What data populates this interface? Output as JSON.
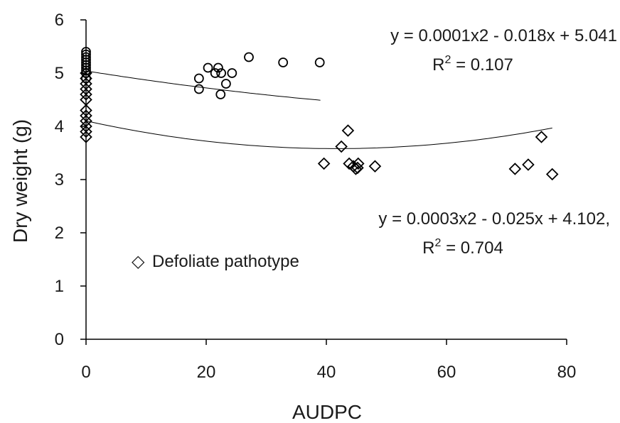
{
  "chart_data": {
    "type": "scatter",
    "title": "",
    "xlabel": "AUDPC",
    "ylabel": "Dry weight  (g)",
    "xlim": [
      0,
      80
    ],
    "ylim": [
      0,
      6
    ],
    "xticks": [
      "0",
      "20",
      "40",
      "60",
      "80"
    ],
    "yticks": [
      "0",
      "1",
      "2",
      "3",
      "4",
      "5",
      "6"
    ],
    "grid": false,
    "legend": {
      "position": "lower-left",
      "marker": "◇",
      "label": "Defoliate pathotype"
    },
    "series": [
      {
        "marker": "circle",
        "points": [
          [
            0,
            4.9
          ],
          [
            0,
            5.0
          ],
          [
            0,
            5.05
          ],
          [
            0,
            5.1
          ],
          [
            0,
            5.15
          ],
          [
            0,
            5.2
          ],
          [
            0,
            5.25
          ],
          [
            0,
            5.3
          ],
          [
            0,
            5.35
          ],
          [
            0,
            5.4
          ],
          [
            18.8,
            4.9
          ],
          [
            18.8,
            4.7
          ],
          [
            20.3,
            5.1
          ],
          [
            21.5,
            5.0
          ],
          [
            22.0,
            5.1
          ],
          [
            22.5,
            5.0
          ],
          [
            22.4,
            4.6
          ],
          [
            23.3,
            4.8
          ],
          [
            24.3,
            5.0
          ],
          [
            27.1,
            5.3
          ],
          [
            32.8,
            5.2
          ],
          [
            38.9,
            5.2
          ]
        ],
        "fit": {
          "type": "poly2",
          "a": 0.0001,
          "b": -0.018,
          "c": 5.041,
          "x_range": [
            0,
            39
          ]
        }
      },
      {
        "marker": "diamond",
        "name": "Defoliate pathotype",
        "points": [
          [
            0,
            3.8
          ],
          [
            0,
            3.9
          ],
          [
            0,
            4.0
          ],
          [
            0,
            4.1
          ],
          [
            0,
            4.2
          ],
          [
            0,
            4.3
          ],
          [
            0,
            4.5
          ],
          [
            0,
            4.6
          ],
          [
            0,
            4.7
          ],
          [
            0,
            4.8
          ],
          [
            0,
            4.9
          ],
          [
            0,
            5.0
          ],
          [
            39.6,
            3.3
          ],
          [
            42.5,
            3.62
          ],
          [
            43.6,
            3.92
          ],
          [
            43.8,
            3.3
          ],
          [
            44.5,
            3.25
          ],
          [
            44.9,
            3.2
          ],
          [
            45.2,
            3.22
          ],
          [
            45.3,
            3.3
          ],
          [
            48.1,
            3.25
          ],
          [
            71.4,
            3.2
          ],
          [
            73.6,
            3.28
          ],
          [
            75.8,
            3.8
          ],
          [
            77.6,
            3.1
          ]
        ],
        "fit": {
          "type": "poly2",
          "a": 0.0003,
          "b": -0.025,
          "c": 4.102,
          "x_range": [
            0,
            77.6
          ]
        }
      }
    ],
    "annotations": {
      "eq_top": "y = 0.0001x2 - 0.018x + 5.041",
      "r2_top_prefix": "R",
      "r2_top_sup": "2",
      "r2_top_value": " = 0.107",
      "eq_bottom": "y = 0.0003x2 - 0.025x + 4.102,",
      "r2_bottom_prefix": "R",
      "r2_bottom_sup": "2",
      "r2_bottom_value": " = 0.704"
    }
  }
}
